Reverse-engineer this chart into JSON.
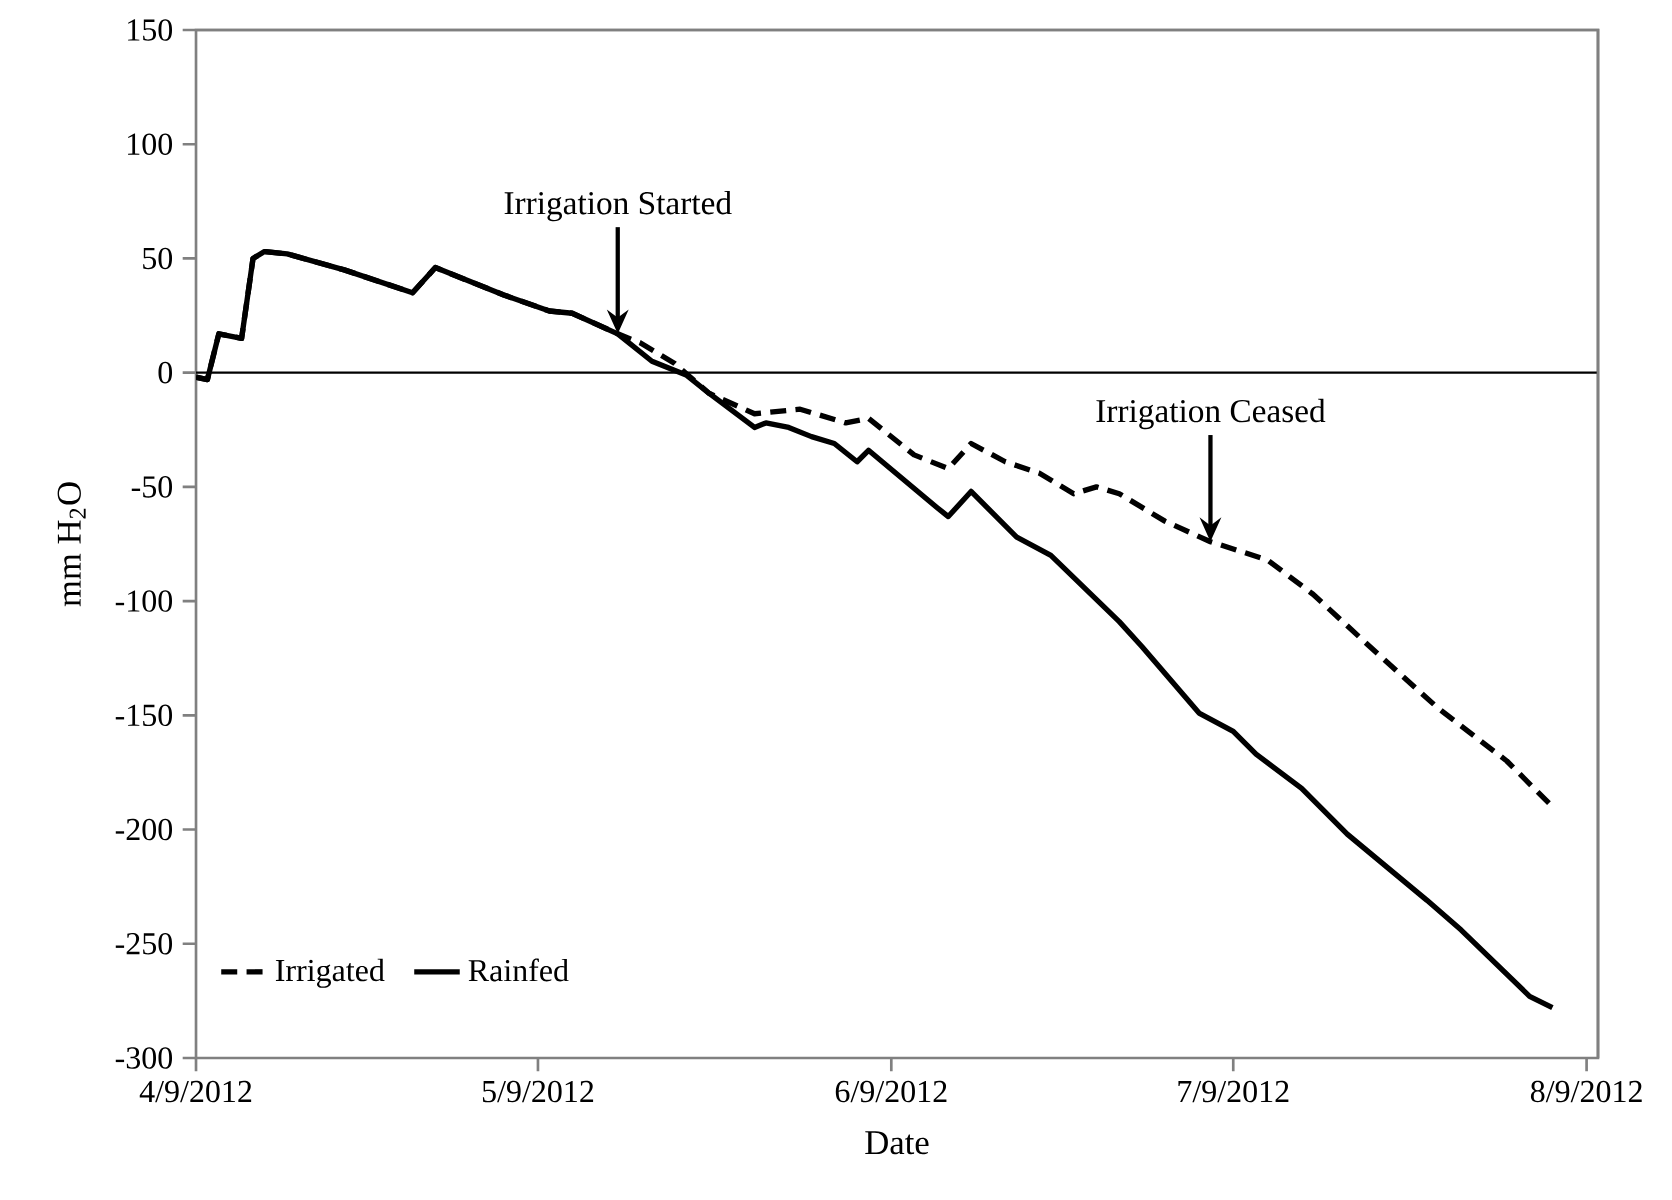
{
  "chart_data": {
    "type": "line",
    "xlabel": "Date",
    "ylabel": "mm H$_{2}$O",
    "xlim": [
      "2012-04-09",
      "2012-08-10"
    ],
    "ylim": [
      -300,
      150
    ],
    "xticks": [
      {
        "value": "2012-04-09",
        "label": "4/9/2012"
      },
      {
        "value": "2012-05-09",
        "label": "5/9/2012"
      },
      {
        "value": "2012-06-09",
        "label": "6/9/2012"
      },
      {
        "value": "2012-07-09",
        "label": "7/9/2012"
      },
      {
        "value": "2012-08-09",
        "label": "8/9/2012"
      }
    ],
    "yticks": [
      -300,
      -250,
      -200,
      -150,
      -100,
      -50,
      0,
      50,
      100,
      150
    ],
    "legend": "bottom left",
    "grid": false,
    "marker": "none",
    "ref_lines": [
      {
        "axis": "y",
        "value": 0,
        "color": "#000000"
      }
    ],
    "annotations": [
      {
        "text": "Irrigation Started",
        "x": "2012-05-16",
        "y": 17
      },
      {
        "text": "Irrigation Ceased",
        "x": "2012-07-07",
        "y": -74
      }
    ],
    "series": [
      {
        "name": "Irrigated",
        "color": "#000000",
        "line_style": "dashed",
        "x": [
          "2012-04-09",
          "2012-04-10",
          "2012-04-11",
          "2012-04-13",
          "2012-04-14",
          "2012-04-15",
          "2012-04-17",
          "2012-04-22",
          "2012-04-28",
          "2012-04-30",
          "2012-05-06",
          "2012-05-10",
          "2012-05-12",
          "2012-05-16",
          "2012-05-18",
          "2012-05-21",
          "2012-05-24",
          "2012-05-28",
          "2012-06-01",
          "2012-06-05",
          "2012-06-07",
          "2012-06-11",
          "2012-06-14",
          "2012-06-16",
          "2012-06-19",
          "2012-06-22",
          "2012-06-25",
          "2012-06-27",
          "2012-06-29",
          "2012-07-03",
          "2012-07-07",
          "2012-07-12",
          "2012-07-16",
          "2012-07-21",
          "2012-07-27",
          "2012-08-02",
          "2012-08-06"
        ],
        "values": [
          -2,
          -3,
          17,
          15,
          50,
          53,
          52,
          45,
          35,
          46,
          34,
          27,
          26,
          17,
          13,
          4,
          -9,
          -18,
          -16,
          -22,
          -20,
          -36,
          -42,
          -31,
          -39,
          -44,
          -53,
          -50,
          -53,
          -65,
          -74,
          -82,
          -97,
          -120,
          -147,
          -170,
          -190
        ]
      },
      {
        "name": "Rainfed",
        "color": "#000000",
        "line_style": "solid",
        "x": [
          "2012-04-09",
          "2012-04-10",
          "2012-04-11",
          "2012-04-13",
          "2012-04-14",
          "2012-04-15",
          "2012-04-17",
          "2012-04-22",
          "2012-04-28",
          "2012-04-30",
          "2012-05-06",
          "2012-05-10",
          "2012-05-12",
          "2012-05-16",
          "2012-05-19",
          "2012-05-22",
          "2012-05-24",
          "2012-05-28",
          "2012-05-29",
          "2012-05-31",
          "2012-06-02",
          "2012-06-04",
          "2012-06-06",
          "2012-06-07",
          "2012-06-13",
          "2012-06-14",
          "2012-06-16",
          "2012-06-20",
          "2012-06-23",
          "2012-06-29",
          "2012-07-01",
          "2012-07-06",
          "2012-07-09",
          "2012-07-11",
          "2012-07-15",
          "2012-07-19",
          "2012-07-26",
          "2012-07-29",
          "2012-08-04",
          "2012-08-06"
        ],
        "values": [
          -2,
          -3,
          17,
          15,
          50,
          53,
          52,
          45,
          35,
          46,
          34,
          27,
          26,
          17,
          5,
          -1,
          -9,
          -24,
          -22,
          -24,
          -28,
          -31,
          -39,
          -34,
          -59,
          -63,
          -52,
          -72,
          -80,
          -109,
          -120,
          -149,
          -157,
          -167,
          -182,
          -202,
          -231,
          -244,
          -273,
          -278
        ]
      }
    ]
  }
}
